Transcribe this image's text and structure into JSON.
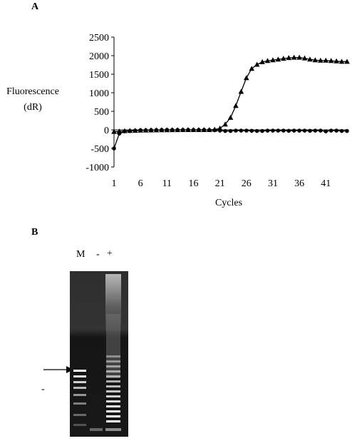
{
  "figure": {
    "panel_a_label": "A",
    "panel_b_label": "B"
  },
  "chart_data": {
    "type": "line",
    "title": "",
    "xlabel": "Cycles",
    "ylabel": [
      "Fluorescence",
      "(dR)"
    ],
    "ylim": [
      -1000,
      2500
    ],
    "yticks": [
      "2500",
      "2000",
      "1500",
      "1000",
      "500",
      "0",
      "-500",
      "-1000"
    ],
    "ytick_values": [
      2500,
      2000,
      1500,
      1000,
      500,
      0,
      -500,
      -1000
    ],
    "xlim": [
      1,
      45
    ],
    "xticks": [
      "1",
      "6",
      "11",
      "16",
      "21",
      "26",
      "31",
      "36",
      "41"
    ],
    "xtick_values": [
      1,
      6,
      11,
      16,
      21,
      26,
      31,
      36,
      41
    ],
    "grid": false,
    "legend": "none",
    "series": [
      {
        "marker": "triangle",
        "x": [
          1,
          2,
          3,
          4,
          5,
          6,
          7,
          8,
          9,
          10,
          11,
          12,
          13,
          14,
          15,
          16,
          17,
          18,
          19,
          20,
          21,
          22,
          23,
          24,
          25,
          26,
          27,
          28,
          29,
          30,
          31,
          32,
          33,
          34,
          35,
          36,
          37,
          38,
          39,
          40,
          41,
          42,
          43,
          44,
          45
        ],
        "values": [
          -50,
          -40,
          -30,
          -25,
          -20,
          -15,
          -12,
          -10,
          -8,
          -5,
          -5,
          -3,
          -2,
          0,
          0,
          0,
          0,
          0,
          0,
          10,
          40,
          150,
          330,
          650,
          1030,
          1400,
          1650,
          1760,
          1830,
          1860,
          1880,
          1900,
          1920,
          1940,
          1950,
          1950,
          1930,
          1900,
          1880,
          1870,
          1870,
          1860,
          1850,
          1840,
          1840
        ]
      },
      {
        "marker": "circle",
        "x": [
          1,
          2,
          3,
          4,
          5,
          6,
          7,
          8,
          9,
          10,
          11,
          12,
          13,
          14,
          15,
          16,
          17,
          18,
          19,
          20,
          21,
          22,
          23,
          24,
          25,
          26,
          27,
          28,
          29,
          30,
          31,
          32,
          33,
          34,
          35,
          36,
          37,
          38,
          39,
          40,
          41,
          42,
          43,
          44,
          45
        ],
        "values": [
          -500,
          -100,
          -40,
          -30,
          -20,
          -10,
          -10,
          -5,
          -5,
          0,
          0,
          0,
          0,
          0,
          0,
          0,
          0,
          0,
          -5,
          -10,
          -20,
          -30,
          -30,
          -20,
          -20,
          -20,
          -25,
          -30,
          -30,
          -20,
          -20,
          -20,
          -20,
          -25,
          -20,
          -20,
          -20,
          -25,
          -20,
          -20,
          -40,
          -20,
          -20,
          -30,
          -30
        ]
      }
    ]
  },
  "gel": {
    "lane_labels": [
      "M",
      "-",
      "+"
    ],
    "side_mark": "-"
  }
}
